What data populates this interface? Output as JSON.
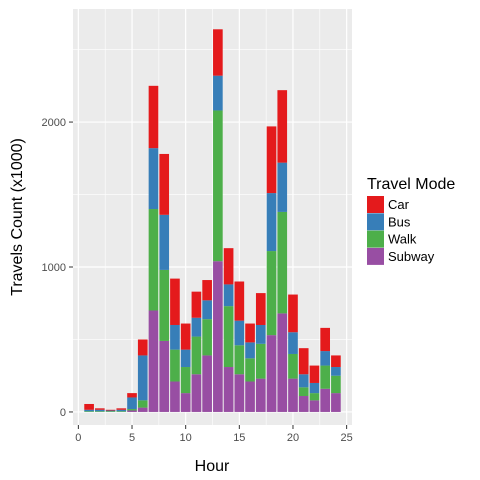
{
  "chart_data": {
    "type": "bar",
    "stacked": true,
    "xlabel": "Hour",
    "ylabel": "Travels Count (x1000)",
    "xlim": [
      -0.5,
      25.5
    ],
    "ylim": [
      -90,
      2780
    ],
    "x_ticks": [
      0,
      5,
      10,
      15,
      20,
      25
    ],
    "y_ticks": [
      0,
      1000,
      2000
    ],
    "grid": true,
    "legend_position": "right",
    "legend_title": "Travel Mode",
    "x": [
      1,
      2,
      3,
      4,
      5,
      6,
      7,
      8,
      9,
      10,
      11,
      12,
      13,
      14,
      15,
      16,
      17,
      18,
      19,
      20,
      21,
      22,
      23,
      24
    ],
    "series": [
      {
        "name": "Car",
        "color": "#E41A1C",
        "values": [
          40,
          10,
          5,
          10,
          30,
          110,
          430,
          420,
          320,
          180,
          180,
          140,
          320,
          250,
          270,
          130,
          220,
          460,
          500,
          260,
          180,
          120,
          160,
          80
        ]
      },
      {
        "name": "Bus",
        "color": "#377EB8",
        "values": [
          10,
          10,
          5,
          10,
          80,
          310,
          420,
          380,
          170,
          120,
          130,
          130,
          240,
          150,
          170,
          110,
          130,
          400,
          340,
          150,
          90,
          70,
          100,
          60
        ]
      },
      {
        "name": "Walk",
        "color": "#4DAF4A",
        "values": [
          5,
          5,
          5,
          5,
          10,
          50,
          700,
          490,
          220,
          180,
          260,
          250,
          1040,
          420,
          200,
          160,
          240,
          580,
          700,
          170,
          60,
          50,
          160,
          120
        ]
      },
      {
        "name": "Subway",
        "color": "#984EA3",
        "values": [
          0,
          0,
          0,
          0,
          10,
          30,
          700,
          490,
          210,
          130,
          260,
          390,
          1040,
          310,
          260,
          210,
          230,
          530,
          680,
          230,
          110,
          80,
          160,
          130
        ]
      }
    ]
  }
}
